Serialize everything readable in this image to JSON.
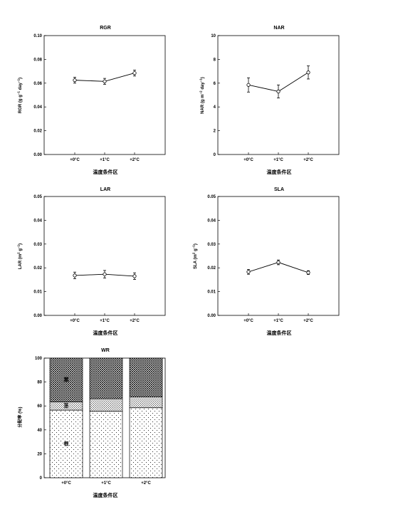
{
  "figure": {
    "x_axis_label": "温度条件区",
    "categories": [
      "+0°C",
      "+1°C",
      "+2°C"
    ]
  },
  "chart_data": [
    {
      "id": "rgr",
      "type": "line",
      "title": "RGR",
      "xlabel": "温度条件区",
      "ylabel": "RGR (g g⁻¹ day⁻¹)",
      "ylabel_parts": {
        "base": "RGR (g g",
        "e1": "−1",
        "mid": " day",
        "e2": "−1",
        "end": ")"
      },
      "categories": [
        "+0°C",
        "+1°C",
        "+2°C"
      ],
      "values": [
        0.0625,
        0.0615,
        0.0685
      ],
      "errors": [
        0.0025,
        0.0025,
        0.0025
      ],
      "ylim": [
        0,
        0.1
      ],
      "yticks": [
        "0.00",
        "0.02",
        "0.04",
        "0.06",
        "0.08",
        "0.10"
      ]
    },
    {
      "id": "nar",
      "type": "line",
      "title": "NAR",
      "xlabel": "温度条件区",
      "ylabel": "NAR (g m⁻² day⁻¹)",
      "ylabel_parts": {
        "base": "NAR (g m",
        "e1": "−2",
        "mid": " day",
        "e2": "−1",
        "end": ")"
      },
      "categories": [
        "+0°C",
        "+1°C",
        "+2°C"
      ],
      "values": [
        5.85,
        5.3,
        6.9
      ],
      "errors": [
        0.6,
        0.55,
        0.55
      ],
      "ylim": [
        0,
        10
      ],
      "yticks": [
        "0",
        "2",
        "4",
        "6",
        "8",
        "10"
      ]
    },
    {
      "id": "lar",
      "type": "line",
      "title": "LAR",
      "xlabel": "温度条件区",
      "ylabel": "LAR (m² g⁻¹)",
      "ylabel_parts": {
        "base": "LAR (m",
        "e1": "2",
        "mid": " g",
        "e2": "−1",
        "end": ")"
      },
      "categories": [
        "+0°C",
        "+1°C",
        "+2°C"
      ],
      "values": [
        0.0168,
        0.0173,
        0.0165
      ],
      "errors": [
        0.0014,
        0.0016,
        0.0014
      ],
      "ylim": [
        0,
        0.05
      ],
      "yticks": [
        "0.00",
        "0.01",
        "0.02",
        "0.03",
        "0.04",
        "0.05"
      ]
    },
    {
      "id": "sla",
      "type": "line",
      "title": "SLA",
      "xlabel": "温度条件区",
      "ylabel": "SLA (m² g⁻¹)",
      "ylabel_parts": {
        "base": "SLA (m",
        "e1": "2",
        "mid": " g",
        "e2": "−1",
        "end": ")"
      },
      "categories": [
        "+0°C",
        "+1°C",
        "+2°C"
      ],
      "values": [
        0.0183,
        0.0223,
        0.018
      ],
      "errors": [
        0.001,
        0.001,
        0.0008
      ],
      "ylim": [
        0,
        0.05
      ],
      "yticks": [
        "0.00",
        "0.01",
        "0.02",
        "0.03",
        "0.04",
        "0.05"
      ]
    },
    {
      "id": "wr",
      "type": "bar",
      "stacked": true,
      "title": "WR",
      "xlabel": "温度条件区",
      "ylabel": "分配率 (%)",
      "categories": [
        "+0°C",
        "+1°C",
        "+2°C"
      ],
      "series": [
        {
          "name": "根",
          "pattern": "sparse-dots",
          "values": [
            56.5,
            55.5,
            58.5
          ]
        },
        {
          "name": "茎",
          "pattern": "dense-dots",
          "values": [
            7.0,
            10.5,
            9.0
          ]
        },
        {
          "name": "葉",
          "pattern": "crosshatch",
          "values": [
            36.5,
            34.0,
            32.5
          ]
        }
      ],
      "ylim": [
        0,
        100
      ],
      "yticks": [
        "0",
        "20",
        "40",
        "60",
        "80",
        "100"
      ]
    }
  ]
}
